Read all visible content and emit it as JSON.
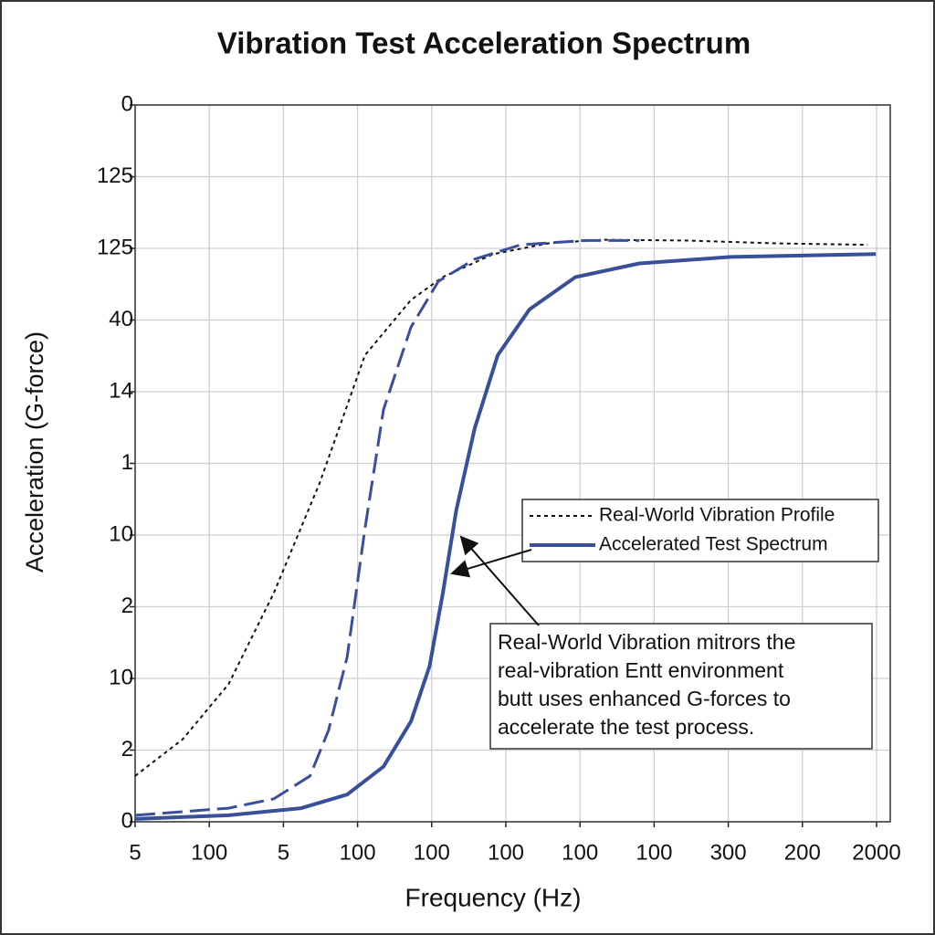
{
  "chart_data": {
    "type": "line",
    "title": "Vibration Test Acceleration Spectrum",
    "xlabel": "Frequency (Hz)",
    "ylabel": "Acceleration (G-force)",
    "xlim": [
      0,
      10.2
    ],
    "ylim": [
      0,
      10
    ],
    "xticks": [
      {
        "value": 0,
        "label": "5"
      },
      {
        "value": 1,
        "label": "100"
      },
      {
        "value": 2,
        "label": "5"
      },
      {
        "value": 3,
        "label": "100"
      },
      {
        "value": 4,
        "label": "100"
      },
      {
        "value": 5,
        "label": "100"
      },
      {
        "value": 6,
        "label": "100"
      },
      {
        "value": 7,
        "label": "100"
      },
      {
        "value": 8,
        "label": "300"
      },
      {
        "value": 9,
        "label": "200"
      },
      {
        "value": 10,
        "label": "2000"
      }
    ],
    "yticks": [
      {
        "value": 0,
        "label": "0"
      },
      {
        "value": 1,
        "label": "2"
      },
      {
        "value": 2,
        "label": "10"
      },
      {
        "value": 3,
        "label": "2"
      },
      {
        "value": 4,
        "label": "10"
      },
      {
        "value": 5,
        "label": "1"
      },
      {
        "value": 6,
        "label": "14"
      },
      {
        "value": 7,
        "label": "40"
      },
      {
        "value": 8,
        "label": "125"
      },
      {
        "value": 9,
        "label": "125"
      },
      {
        "value": 10,
        "label": "0"
      }
    ],
    "grid": true,
    "series": [
      {
        "name": "Real-World Vibration Profile",
        "color": "#111111",
        "dash": "dotted",
        "x": [
          0,
          0.64,
          1.26,
          1.87,
          2.49,
          3.1,
          3.72,
          4.15,
          4.83,
          5.57,
          6.3,
          7.41,
          8.64,
          9.88
        ],
        "values": [
          0.64,
          1.15,
          1.92,
          3.19,
          4.73,
          6.51,
          7.28,
          7.6,
          7.92,
          8.07,
          8.12,
          8.11,
          8.07,
          8.05
        ]
      },
      {
        "color": "#3a4f9a",
        "dash": "dashed",
        "x": [
          0,
          1.26,
          1.87,
          2.36,
          2.61,
          2.86,
          3.1,
          3.35,
          3.72,
          4.09,
          4.58,
          5.2,
          6.06,
          6.8
        ],
        "values": [
          0.09,
          0.19,
          0.32,
          0.64,
          1.28,
          2.3,
          4.09,
          5.75,
          6.9,
          7.54,
          7.85,
          8.05,
          8.11,
          8.11
        ]
      },
      {
        "name": "Accelerated Test Spectrum",
        "color": "#3a4f9a",
        "dash": "solid",
        "x": [
          0,
          1.26,
          2.24,
          2.86,
          3.35,
          3.72,
          3.97,
          4.15,
          4.33,
          4.58,
          4.89,
          5.32,
          5.94,
          6.8,
          8.03,
          9.99
        ],
        "values": [
          0.04,
          0.09,
          0.19,
          0.38,
          0.77,
          1.4,
          2.17,
          3.19,
          4.34,
          5.49,
          6.51,
          7.15,
          7.6,
          7.79,
          7.88,
          7.92
        ]
      }
    ],
    "annotation": [
      "Real-World Vibration mitrors the",
      "real-vibration Entt environment",
      "butt uses enhanced G-forces to",
      "accelerate the test process."
    ]
  }
}
